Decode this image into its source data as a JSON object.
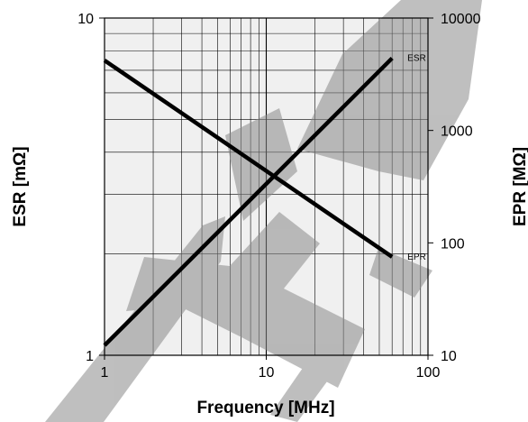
{
  "chart_data": {
    "type": "line",
    "title": "",
    "xlabel": "Frequency [MHz]",
    "ylabel": "ESR [mΩ]",
    "y2label": "EPR [MΩ]",
    "xscale": "log",
    "yscale": "log",
    "y2scale": "log",
    "xlim": [
      1,
      100
    ],
    "ylim": [
      1,
      10
    ],
    "y2lim": [
      10,
      10000
    ],
    "grid": true,
    "x_ticks": [
      "1",
      "10",
      "100"
    ],
    "y_ticks": [
      "1",
      "10"
    ],
    "y2_ticks": [
      "10",
      "100",
      "1000",
      "10000"
    ],
    "series": [
      {
        "name": "ESR",
        "axis": "left",
        "x": [
          1,
          60
        ],
        "y": [
          1.07,
          7.6
        ]
      },
      {
        "name": "EPR",
        "axis": "right",
        "x": [
          1,
          60
        ],
        "y": [
          4200,
          75
        ]
      }
    ],
    "colors": {
      "lines": "#000000",
      "plot_background": "#f0f0f0",
      "grid": "#000000",
      "watermark": "#8a8a8a"
    }
  }
}
